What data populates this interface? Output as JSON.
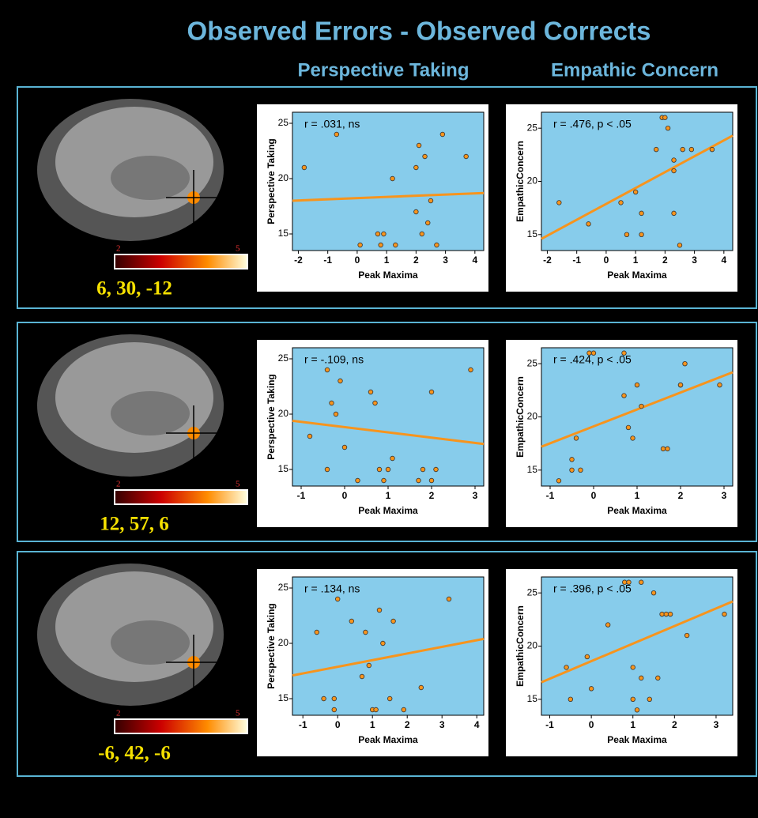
{
  "figure": {
    "title": "Observed Errors - Observed Corrects",
    "columns": [
      "Perspective Taking",
      "Empathic Concern"
    ],
    "panels": [
      {
        "coordinates": "6, 30, -12",
        "colorbar": [
          2,
          5
        ]
      },
      {
        "coordinates": "12, 57, 6",
        "colorbar": [
          2,
          5
        ]
      },
      {
        "coordinates": "-6, 42, -6",
        "colorbar": [
          2,
          5
        ]
      }
    ]
  },
  "chart_data": [
    {
      "type": "scatter",
      "annotation": "r = .031, ns",
      "x_label": "Peak Maxima",
      "y_label": "Perspective Taking",
      "xlim": [
        -2.2,
        4.3
      ],
      "ylim": [
        13.5,
        26
      ],
      "xticks": [
        -2,
        -1,
        0,
        1,
        2,
        3,
        4
      ],
      "yticks": [
        15,
        20,
        25
      ],
      "x": [
        -1.8,
        -0.7,
        0.1,
        0.7,
        0.8,
        0.9,
        1.2,
        1.3,
        2.0,
        2.1,
        2.0,
        2.2,
        2.3,
        2.4,
        2.5,
        2.7,
        2.9,
        3.7
      ],
      "y": [
        21,
        24,
        14,
        15,
        14,
        15,
        20,
        14,
        21,
        23,
        17,
        15,
        22,
        16,
        18,
        14,
        24,
        22
      ],
      "point_color": "#f7941d",
      "fit_line": {
        "x": [
          -2.2,
          4.3
        ],
        "y": [
          18.0,
          18.7
        ],
        "color": "#f7941d"
      }
    },
    {
      "type": "scatter",
      "annotation": "r = .476, p < .05",
      "x_label": "Peak Maxima",
      "y_label": "EmpathicConcern",
      "xlim": [
        -2.2,
        4.3
      ],
      "ylim": [
        13.5,
        26.5
      ],
      "xticks": [
        -2,
        -1,
        0,
        1,
        2,
        3,
        4
      ],
      "yticks": [
        15,
        20,
        25
      ],
      "x": [
        -1.6,
        -0.6,
        0.5,
        0.7,
        1.0,
        1.2,
        1.2,
        1.7,
        1.9,
        2.0,
        2.1,
        2.3,
        2.3,
        2.3,
        2.5,
        2.6,
        2.9,
        3.6
      ],
      "y": [
        18,
        16,
        18,
        15,
        19,
        17,
        15,
        23,
        26,
        26,
        25,
        22,
        21,
        17,
        14,
        23,
        23,
        23
      ],
      "point_color": "#f7941d",
      "fit_line": {
        "x": [
          -2.2,
          4.3
        ],
        "y": [
          14.6,
          24.3
        ],
        "color": "#f7941d"
      }
    },
    {
      "type": "scatter",
      "annotation": "r = -.109, ns",
      "x_label": "Peak Maxima",
      "y_label": "Perspective Taking",
      "xlim": [
        -1.2,
        3.2
      ],
      "ylim": [
        13.5,
        26
      ],
      "xticks": [
        -1,
        0,
        1,
        2,
        3
      ],
      "yticks": [
        15,
        20,
        25
      ],
      "x": [
        -0.8,
        -0.4,
        -0.3,
        -0.2,
        -0.1,
        -0.4,
        0.0,
        0.3,
        0.6,
        0.7,
        0.8,
        0.9,
        1.1,
        1.0,
        1.7,
        1.8,
        2.0,
        2.0,
        2.1,
        2.9
      ],
      "y": [
        18,
        24,
        21,
        20,
        23,
        15,
        17,
        14,
        22,
        21,
        15,
        14,
        16,
        15,
        14,
        15,
        22,
        14,
        15,
        24
      ],
      "point_color": "#f7941d",
      "fit_line": {
        "x": [
          -1.2,
          3.2
        ],
        "y": [
          19.4,
          17.3
        ],
        "color": "#f7941d"
      }
    },
    {
      "type": "scatter",
      "annotation": "r = .424, p < .05",
      "x_label": "Peak Maxima",
      "y_label": "EmpathicConcern",
      "xlim": [
        -1.2,
        3.2
      ],
      "ylim": [
        13.5,
        26.5
      ],
      "xticks": [
        -1,
        0,
        1,
        2,
        3
      ],
      "yticks": [
        15,
        20,
        25
      ],
      "x": [
        -0.8,
        -0.5,
        -0.5,
        -0.4,
        -0.3,
        -0.1,
        0.0,
        0.7,
        0.7,
        0.8,
        0.9,
        1.0,
        1.1,
        1.6,
        1.7,
        2.0,
        2.1,
        2.0,
        2.9
      ],
      "y": [
        14,
        15,
        16,
        18,
        15,
        26,
        26,
        22,
        26,
        19,
        18,
        23,
        21,
        17,
        17,
        23,
        25,
        23,
        23
      ],
      "point_color": "#f7941d",
      "fit_line": {
        "x": [
          -1.2,
          3.2
        ],
        "y": [
          17.2,
          24.2
        ],
        "color": "#f7941d"
      }
    },
    {
      "type": "scatter",
      "annotation": "r = .134, ns",
      "x_label": "Peak Maxima",
      "y_label": "Perspective Taking",
      "xlim": [
        -1.3,
        4.2
      ],
      "ylim": [
        13.5,
        26
      ],
      "xticks": [
        -1,
        0,
        1,
        2,
        3,
        4
      ],
      "yticks": [
        15,
        20,
        25
      ],
      "x": [
        -0.6,
        -0.4,
        -0.1,
        0.0,
        -0.1,
        0.4,
        0.7,
        0.8,
        0.9,
        1.0,
        1.1,
        1.2,
        1.3,
        1.5,
        1.6,
        1.9,
        2.4,
        3.2
      ],
      "y": [
        21,
        15,
        15,
        24,
        14,
        22,
        17,
        21,
        18,
        14,
        14,
        23,
        20,
        15,
        22,
        14,
        16,
        24
      ],
      "point_color": "#f7941d",
      "fit_line": {
        "x": [
          -1.3,
          4.2
        ],
        "y": [
          17.1,
          20.4
        ],
        "color": "#f7941d"
      }
    },
    {
      "type": "scatter",
      "annotation": "r = .396, p < .05",
      "x_label": "Peak Maxima",
      "y_label": "EmpathicConcern",
      "xlim": [
        -1.2,
        3.4
      ],
      "ylim": [
        13.5,
        26.5
      ],
      "xticks": [
        -1,
        0,
        1,
        2,
        3
      ],
      "yticks": [
        15,
        20,
        25
      ],
      "x": [
        -0.6,
        -0.5,
        -0.1,
        0.0,
        0.4,
        0.8,
        0.9,
        1.0,
        1.0,
        1.1,
        1.2,
        1.2,
        1.4,
        1.5,
        1.6,
        1.7,
        1.8,
        1.9,
        2.3,
        3.2
      ],
      "y": [
        18,
        15,
        19,
        16,
        22,
        26,
        26,
        18,
        15,
        14,
        17,
        26,
        15,
        25,
        17,
        23,
        23,
        23,
        21,
        23
      ],
      "point_color": "#f7941d",
      "fit_line": {
        "x": [
          -1.2,
          3.4
        ],
        "y": [
          16.6,
          24.2
        ],
        "color": "#f7941d"
      }
    }
  ]
}
